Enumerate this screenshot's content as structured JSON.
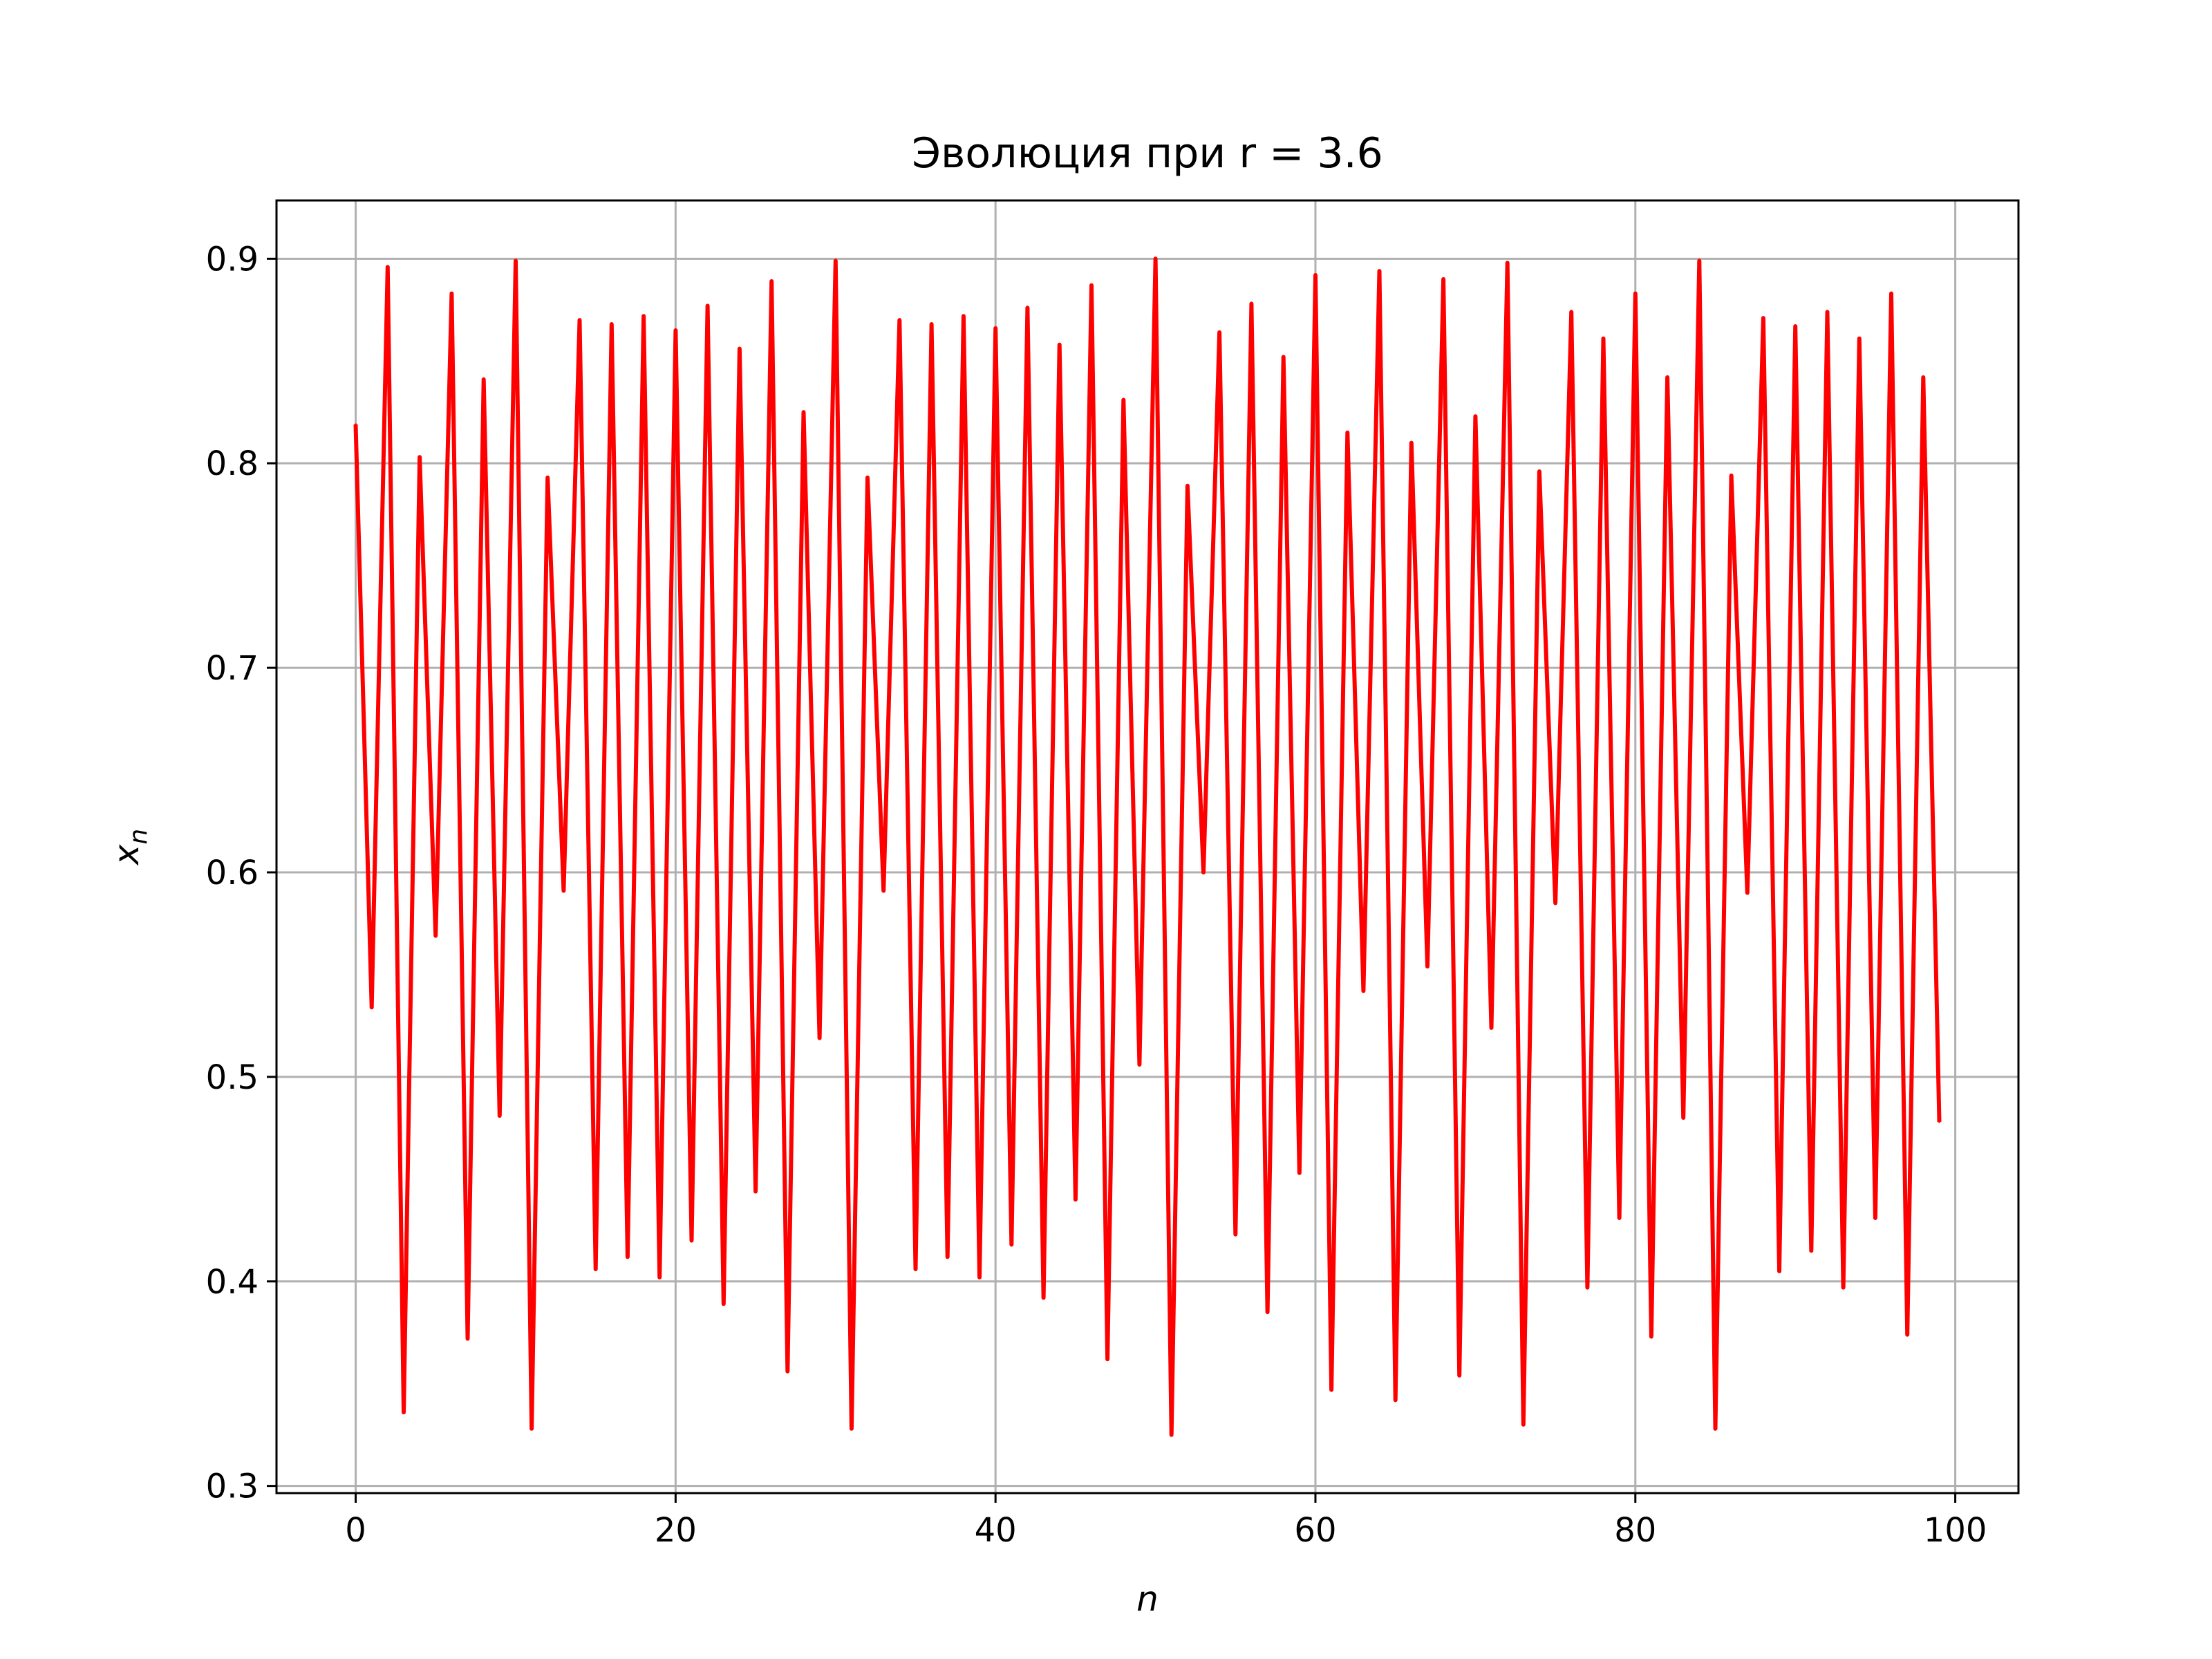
{
  "chart_data": {
    "type": "line",
    "title": "Эволюция при r = 3.6",
    "xlabel": "n",
    "ylabel_base": "x",
    "ylabel_sub": "n",
    "xlim": [
      -4.95,
      103.95
    ],
    "ylim": [
      0.2965,
      0.9285
    ],
    "xticks": [
      0,
      20,
      40,
      60,
      80,
      100
    ],
    "xtick_labels": [
      "0",
      "20",
      "40",
      "60",
      "80",
      "100"
    ],
    "yticks": [
      0.3,
      0.4,
      0.5,
      0.6,
      0.7,
      0.8,
      0.9
    ],
    "ytick_labels": [
      "0.3",
      "0.4",
      "0.5",
      "0.6",
      "0.7",
      "0.8",
      "0.9"
    ],
    "grid": true,
    "line_color": "#ff0000",
    "series": [
      {
        "x": [
          0,
          1,
          2,
          3,
          4,
          5,
          6,
          7,
          8,
          9,
          10,
          11,
          12,
          13,
          14,
          15,
          16,
          17,
          18,
          19,
          20,
          21,
          22,
          23,
          24,
          25,
          26,
          27,
          28,
          29,
          30,
          31,
          32,
          33,
          34,
          35,
          36,
          37,
          38,
          39,
          40,
          41,
          42,
          43,
          44,
          45,
          46,
          47,
          48,
          49,
          50,
          51,
          52,
          53,
          54,
          55,
          56,
          57,
          58,
          59,
          60,
          61,
          62,
          63,
          64,
          65,
          66,
          67,
          68,
          69,
          70,
          71,
          72,
          73,
          74,
          75,
          76,
          77,
          78,
          79,
          80,
          81,
          82,
          83,
          84,
          85,
          86,
          87,
          88,
          89,
          90,
          91,
          92,
          93,
          94,
          95,
          96,
          97,
          98,
          99
        ],
        "values": [
          0.819,
          0.534,
          0.896,
          0.336,
          0.803,
          0.569,
          0.883,
          0.372,
          0.841,
          0.481,
          0.899,
          0.328,
          0.793,
          0.591,
          0.87,
          0.406,
          0.868,
          0.412,
          0.872,
          0.402,
          0.865,
          0.42,
          0.877,
          0.389,
          0.856,
          0.444,
          0.889,
          0.356,
          0.825,
          0.519,
          0.899,
          0.328,
          0.793,
          0.591,
          0.87,
          0.406,
          0.868,
          0.412,
          0.872,
          0.402,
          0.866,
          0.418,
          0.876,
          0.392,
          0.858,
          0.44,
          0.887,
          0.362,
          0.831,
          0.506,
          0.9,
          0.325,
          0.789,
          0.6,
          0.864,
          0.423,
          0.878,
          0.385,
          0.852,
          0.453,
          0.892,
          0.347,
          0.815,
          0.542,
          0.894,
          0.342,
          0.81,
          0.554,
          0.89,
          0.354,
          0.823,
          0.524,
          0.898,
          0.33,
          0.796,
          0.585,
          0.874,
          0.397,
          0.861,
          0.431,
          0.883,
          0.373,
          0.842,
          0.48,
          0.899,
          0.328,
          0.794,
          0.59,
          0.871,
          0.405,
          0.867,
          0.415,
          0.874,
          0.397,
          0.861,
          0.431,
          0.883,
          0.374,
          0.842,
          0.478
        ]
      }
    ]
  }
}
